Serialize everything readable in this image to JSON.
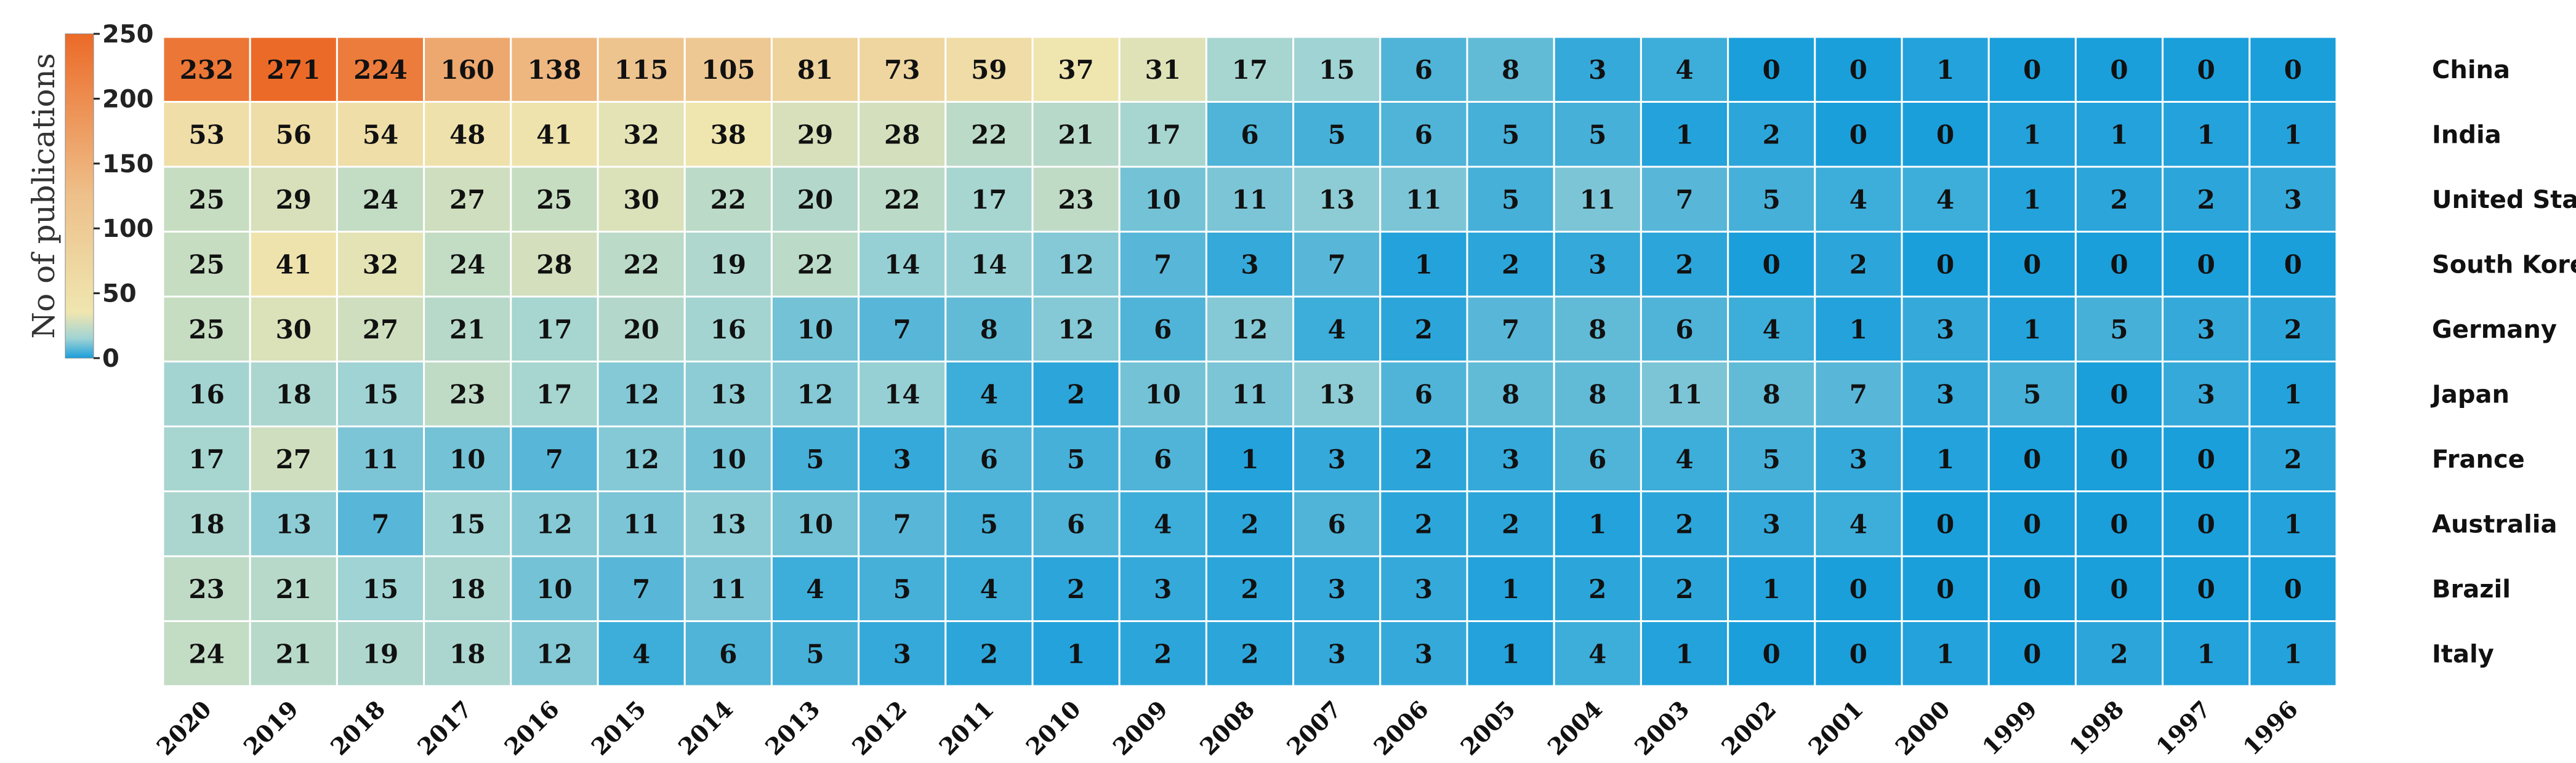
{
  "chart_data": {
    "type": "heatmap",
    "title": "",
    "colorbar": {
      "label": "No of publications",
      "ticks": [
        0,
        50,
        100,
        150,
        200,
        250
      ],
      "range": [
        0,
        250
      ],
      "colors": {
        "low": "#1a9fdb",
        "mid_low": "#9fd3d4",
        "mid": "#efe6b0",
        "mid_high": "#eec08a",
        "high": "#ec6a28"
      }
    },
    "columns": [
      "2020",
      "2019",
      "2018",
      "2017",
      "2016",
      "2015",
      "2014",
      "2013",
      "2012",
      "2011",
      "2010",
      "2009",
      "2008",
      "2007",
      "2006",
      "2005",
      "2004",
      "2003",
      "2002",
      "2001",
      "2000",
      "1999",
      "1998",
      "1997",
      "1996"
    ],
    "rows": [
      "China",
      "India",
      "United States",
      "South Korea",
      "Germany",
      "Japan",
      "France",
      "Australia",
      "Brazil",
      "Italy"
    ],
    "values": [
      [
        232,
        271,
        224,
        160,
        138,
        115,
        105,
        81,
        73,
        59,
        37,
        31,
        17,
        15,
        6,
        8,
        3,
        4,
        0,
        0,
        1,
        0,
        0,
        0,
        0
      ],
      [
        53,
        56,
        54,
        48,
        41,
        32,
        38,
        29,
        28,
        22,
        21,
        17,
        6,
        5,
        6,
        5,
        5,
        1,
        2,
        0,
        0,
        1,
        1,
        1,
        1
      ],
      [
        25,
        29,
        24,
        27,
        25,
        30,
        22,
        20,
        22,
        17,
        23,
        10,
        11,
        13,
        11,
        5,
        11,
        7,
        5,
        4,
        4,
        1,
        2,
        2,
        3
      ],
      [
        25,
        41,
        32,
        24,
        28,
        22,
        19,
        22,
        14,
        14,
        12,
        7,
        3,
        7,
        1,
        2,
        3,
        2,
        0,
        2,
        0,
        0,
        0,
        0,
        0
      ],
      [
        25,
        30,
        27,
        21,
        17,
        20,
        16,
        10,
        7,
        8,
        12,
        6,
        12,
        4,
        2,
        7,
        8,
        6,
        4,
        1,
        3,
        1,
        5,
        3,
        2
      ],
      [
        16,
        18,
        15,
        23,
        17,
        12,
        13,
        12,
        14,
        4,
        2,
        10,
        11,
        13,
        6,
        8,
        8,
        11,
        8,
        7,
        3,
        5,
        0,
        3,
        1
      ],
      [
        17,
        27,
        11,
        10,
        7,
        12,
        10,
        5,
        3,
        6,
        5,
        6,
        1,
        3,
        2,
        3,
        6,
        4,
        5,
        3,
        1,
        0,
        0,
        0,
        2
      ],
      [
        18,
        13,
        7,
        15,
        12,
        11,
        13,
        10,
        7,
        5,
        6,
        4,
        2,
        6,
        2,
        2,
        1,
        2,
        3,
        4,
        0,
        0,
        0,
        0,
        1
      ],
      [
        23,
        21,
        15,
        18,
        10,
        7,
        11,
        4,
        5,
        4,
        2,
        3,
        2,
        3,
        3,
        1,
        2,
        2,
        1,
        0,
        0,
        0,
        0,
        0,
        0
      ],
      [
        24,
        21,
        19,
        18,
        12,
        4,
        6,
        5,
        3,
        2,
        1,
        2,
        2,
        3,
        3,
        1,
        4,
        1,
        0,
        0,
        1,
        0,
        2,
        1,
        1
      ]
    ]
  }
}
